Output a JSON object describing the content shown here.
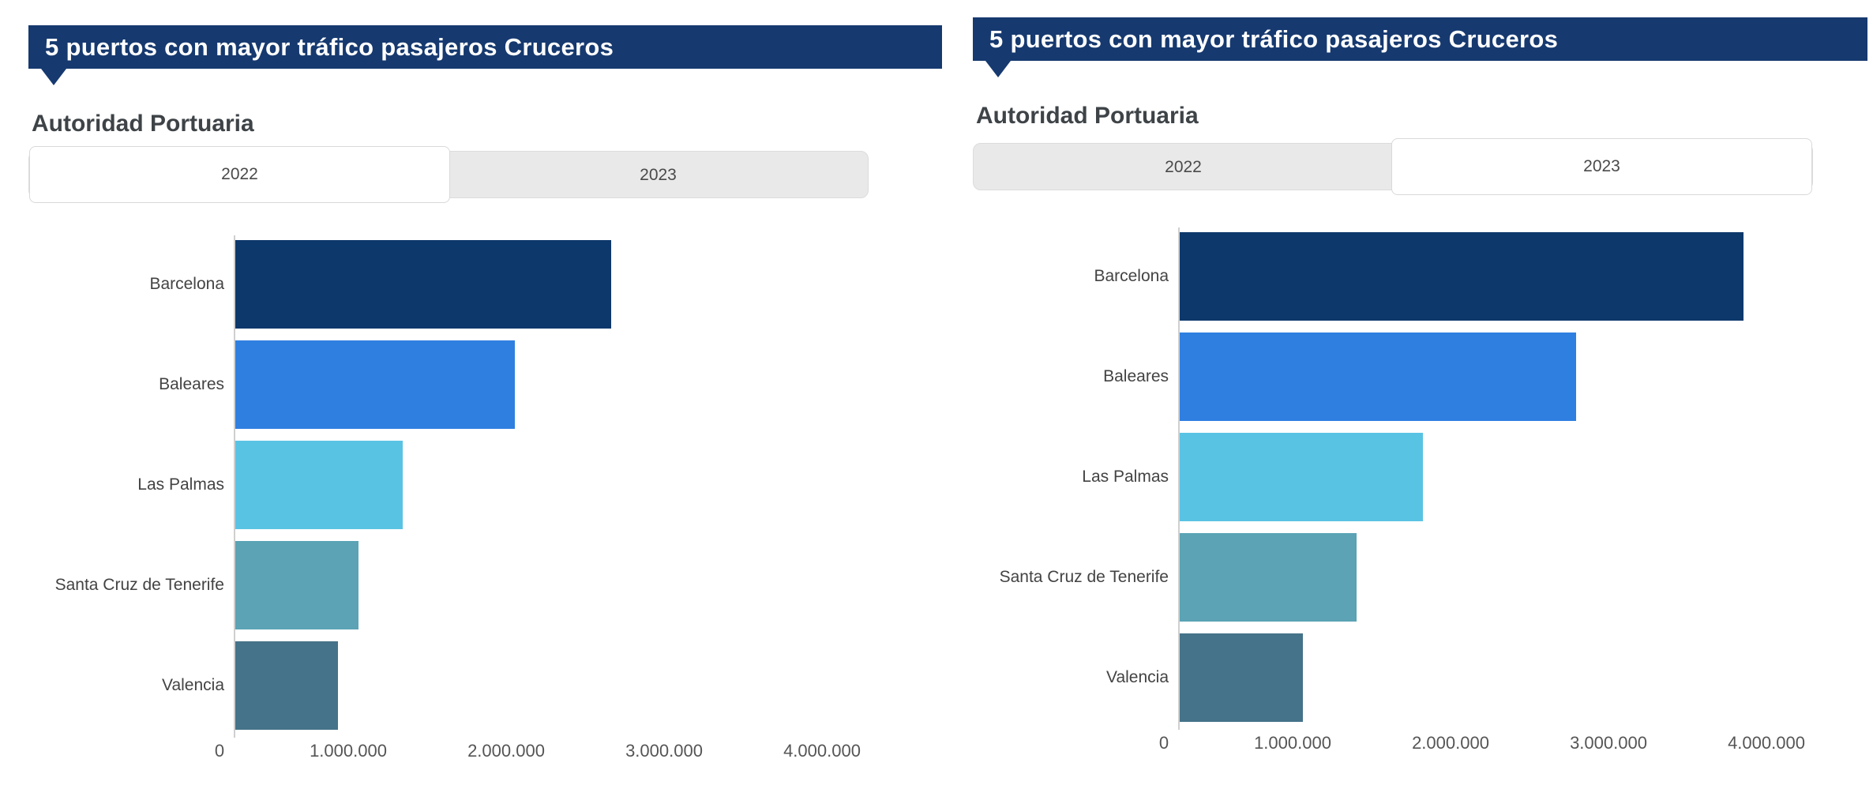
{
  "colors": {
    "banner_bg": "#16396f",
    "banner_text": "#ffffff",
    "subtitle_text": "#3e4347",
    "tab_inactive_bg": "#e9e9e9",
    "tab_active_bg": "#ffffff",
    "tab_border": "#dcdcdc",
    "tab_text": "#4a4a4a",
    "axis_line": "#cfcfcf",
    "category_label_text": "#434343",
    "tick_label_text": "#555555"
  },
  "panels": [
    {
      "title": "5 puertos con mayor tráfico pasajeros Cruceros",
      "subtitle": "Autoridad Portuaria",
      "tabs": [
        {
          "label": "2022",
          "active": true
        },
        {
          "label": "2023",
          "active": false
        }
      ]
    },
    {
      "title": "5 puertos con mayor tráfico pasajeros Cruceros",
      "subtitle": "Autoridad Portuaria",
      "tabs": [
        {
          "label": "2022",
          "active": false
        },
        {
          "label": "2023",
          "active": true
        }
      ]
    }
  ],
  "chart_data": [
    {
      "type": "bar",
      "orientation": "horizontal",
      "title": "5 puertos con mayor tráfico pasajeros Cruceros",
      "subtitle": "Autoridad Portuaria",
      "selected_year": "2022",
      "categories": [
        "Barcelona",
        "Baleares",
        "Las Palmas",
        "Santa Cruz de Tenerife",
        "Valencia"
      ],
      "values": [
        2380000,
        1770000,
        1060000,
        780000,
        650000
      ],
      "bar_colors": [
        "#0d386b",
        "#2f7fe1",
        "#59c3e4",
        "#5ba3b5",
        "#457389"
      ],
      "xlabel": "",
      "ylabel": "",
      "xlim": [
        0,
        4400000
      ],
      "grid": false,
      "legend": false,
      "x_ticks": [
        {
          "value": 0,
          "label": "0"
        },
        {
          "value": 1000000,
          "label": "1.000.000"
        },
        {
          "value": 2000000,
          "label": "2.000.000"
        },
        {
          "value": 3000000,
          "label": "3.000.000"
        },
        {
          "value": 4000000,
          "label": "4.000.000"
        }
      ]
    },
    {
      "type": "bar",
      "orientation": "horizontal",
      "title": "5 puertos con mayor tráfico pasajeros Cruceros",
      "subtitle": "Autoridad Portuaria",
      "selected_year": "2023",
      "categories": [
        "Barcelona",
        "Baleares",
        "Las Palmas",
        "Santa Cruz de Tenerife",
        "Valencia"
      ],
      "values": [
        3570000,
        2510000,
        1540000,
        1120000,
        780000
      ],
      "bar_colors": [
        "#0d386b",
        "#2f7fe1",
        "#59c3e4",
        "#5ba3b5",
        "#457389"
      ],
      "xlabel": "",
      "ylabel": "",
      "xlim": [
        0,
        4400000
      ],
      "grid": false,
      "legend": false,
      "x_ticks": [
        {
          "value": 0,
          "label": "0"
        },
        {
          "value": 1000000,
          "label": "1.000.000"
        },
        {
          "value": 2000000,
          "label": "2.000.000"
        },
        {
          "value": 3000000,
          "label": "3.000.000"
        },
        {
          "value": 4000000,
          "label": "4.000.000"
        }
      ]
    }
  ]
}
